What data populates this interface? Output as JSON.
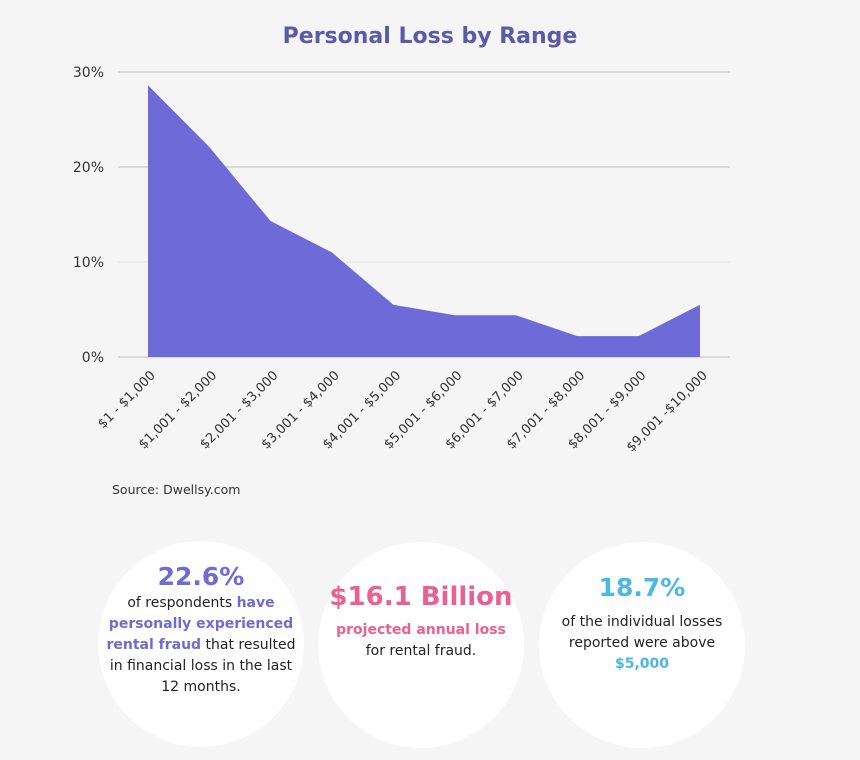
{
  "chart_data": {
    "type": "area",
    "title": "Personal Loss by Range",
    "xlabel": "",
    "ylabel": "",
    "categories": [
      "$1 - $1,000",
      "$1,001 - $2,000",
      "$2,001 - $3,000",
      "$3,001 - $4,000",
      "$4,001 - $5,000",
      "$5,001 - $6,000",
      "$6,001 - $7,000",
      "$7,001 - $8,000",
      "$8,001 - $9,000",
      "$9,001 -$10,000"
    ],
    "series": [
      {
        "name": "Personal Loss",
        "values": [
          28.6,
          22.1,
          14.3,
          11.0,
          5.5,
          4.4,
          4.4,
          2.2,
          2.2,
          5.5
        ],
        "color": "#6e6ad8"
      }
    ],
    "ylim": [
      0,
      30
    ],
    "yticks": [
      0,
      10,
      20,
      30
    ],
    "ytick_labels": [
      "0%",
      "10%",
      "20%",
      "30%"
    ],
    "grid": true,
    "legend": "none"
  },
  "source": "Source: Dwellsy.com",
  "stats": [
    {
      "value": "22.6%",
      "color": "#6e6ad6",
      "parts": [
        {
          "text": "of respondents ",
          "highlight": false
        },
        {
          "text": "have personally experienced rental fraud",
          "highlight": true
        },
        {
          "text": " that resulted in financial loss in the last 12 months.",
          "highlight": false
        }
      ]
    },
    {
      "value": "$16.1 Billion",
      "color": "#ec5f91",
      "parts": [
        {
          "text": "projected annual loss",
          "highlight": true
        },
        {
          "text": " for rental fraud.",
          "highlight": false
        }
      ]
    },
    {
      "value": "18.7%",
      "color": "#4cb7e4",
      "parts": [
        {
          "text": "of the individual losses reported were above ",
          "highlight": false
        },
        {
          "text": "$5,000",
          "highlight": true
        }
      ]
    }
  ]
}
